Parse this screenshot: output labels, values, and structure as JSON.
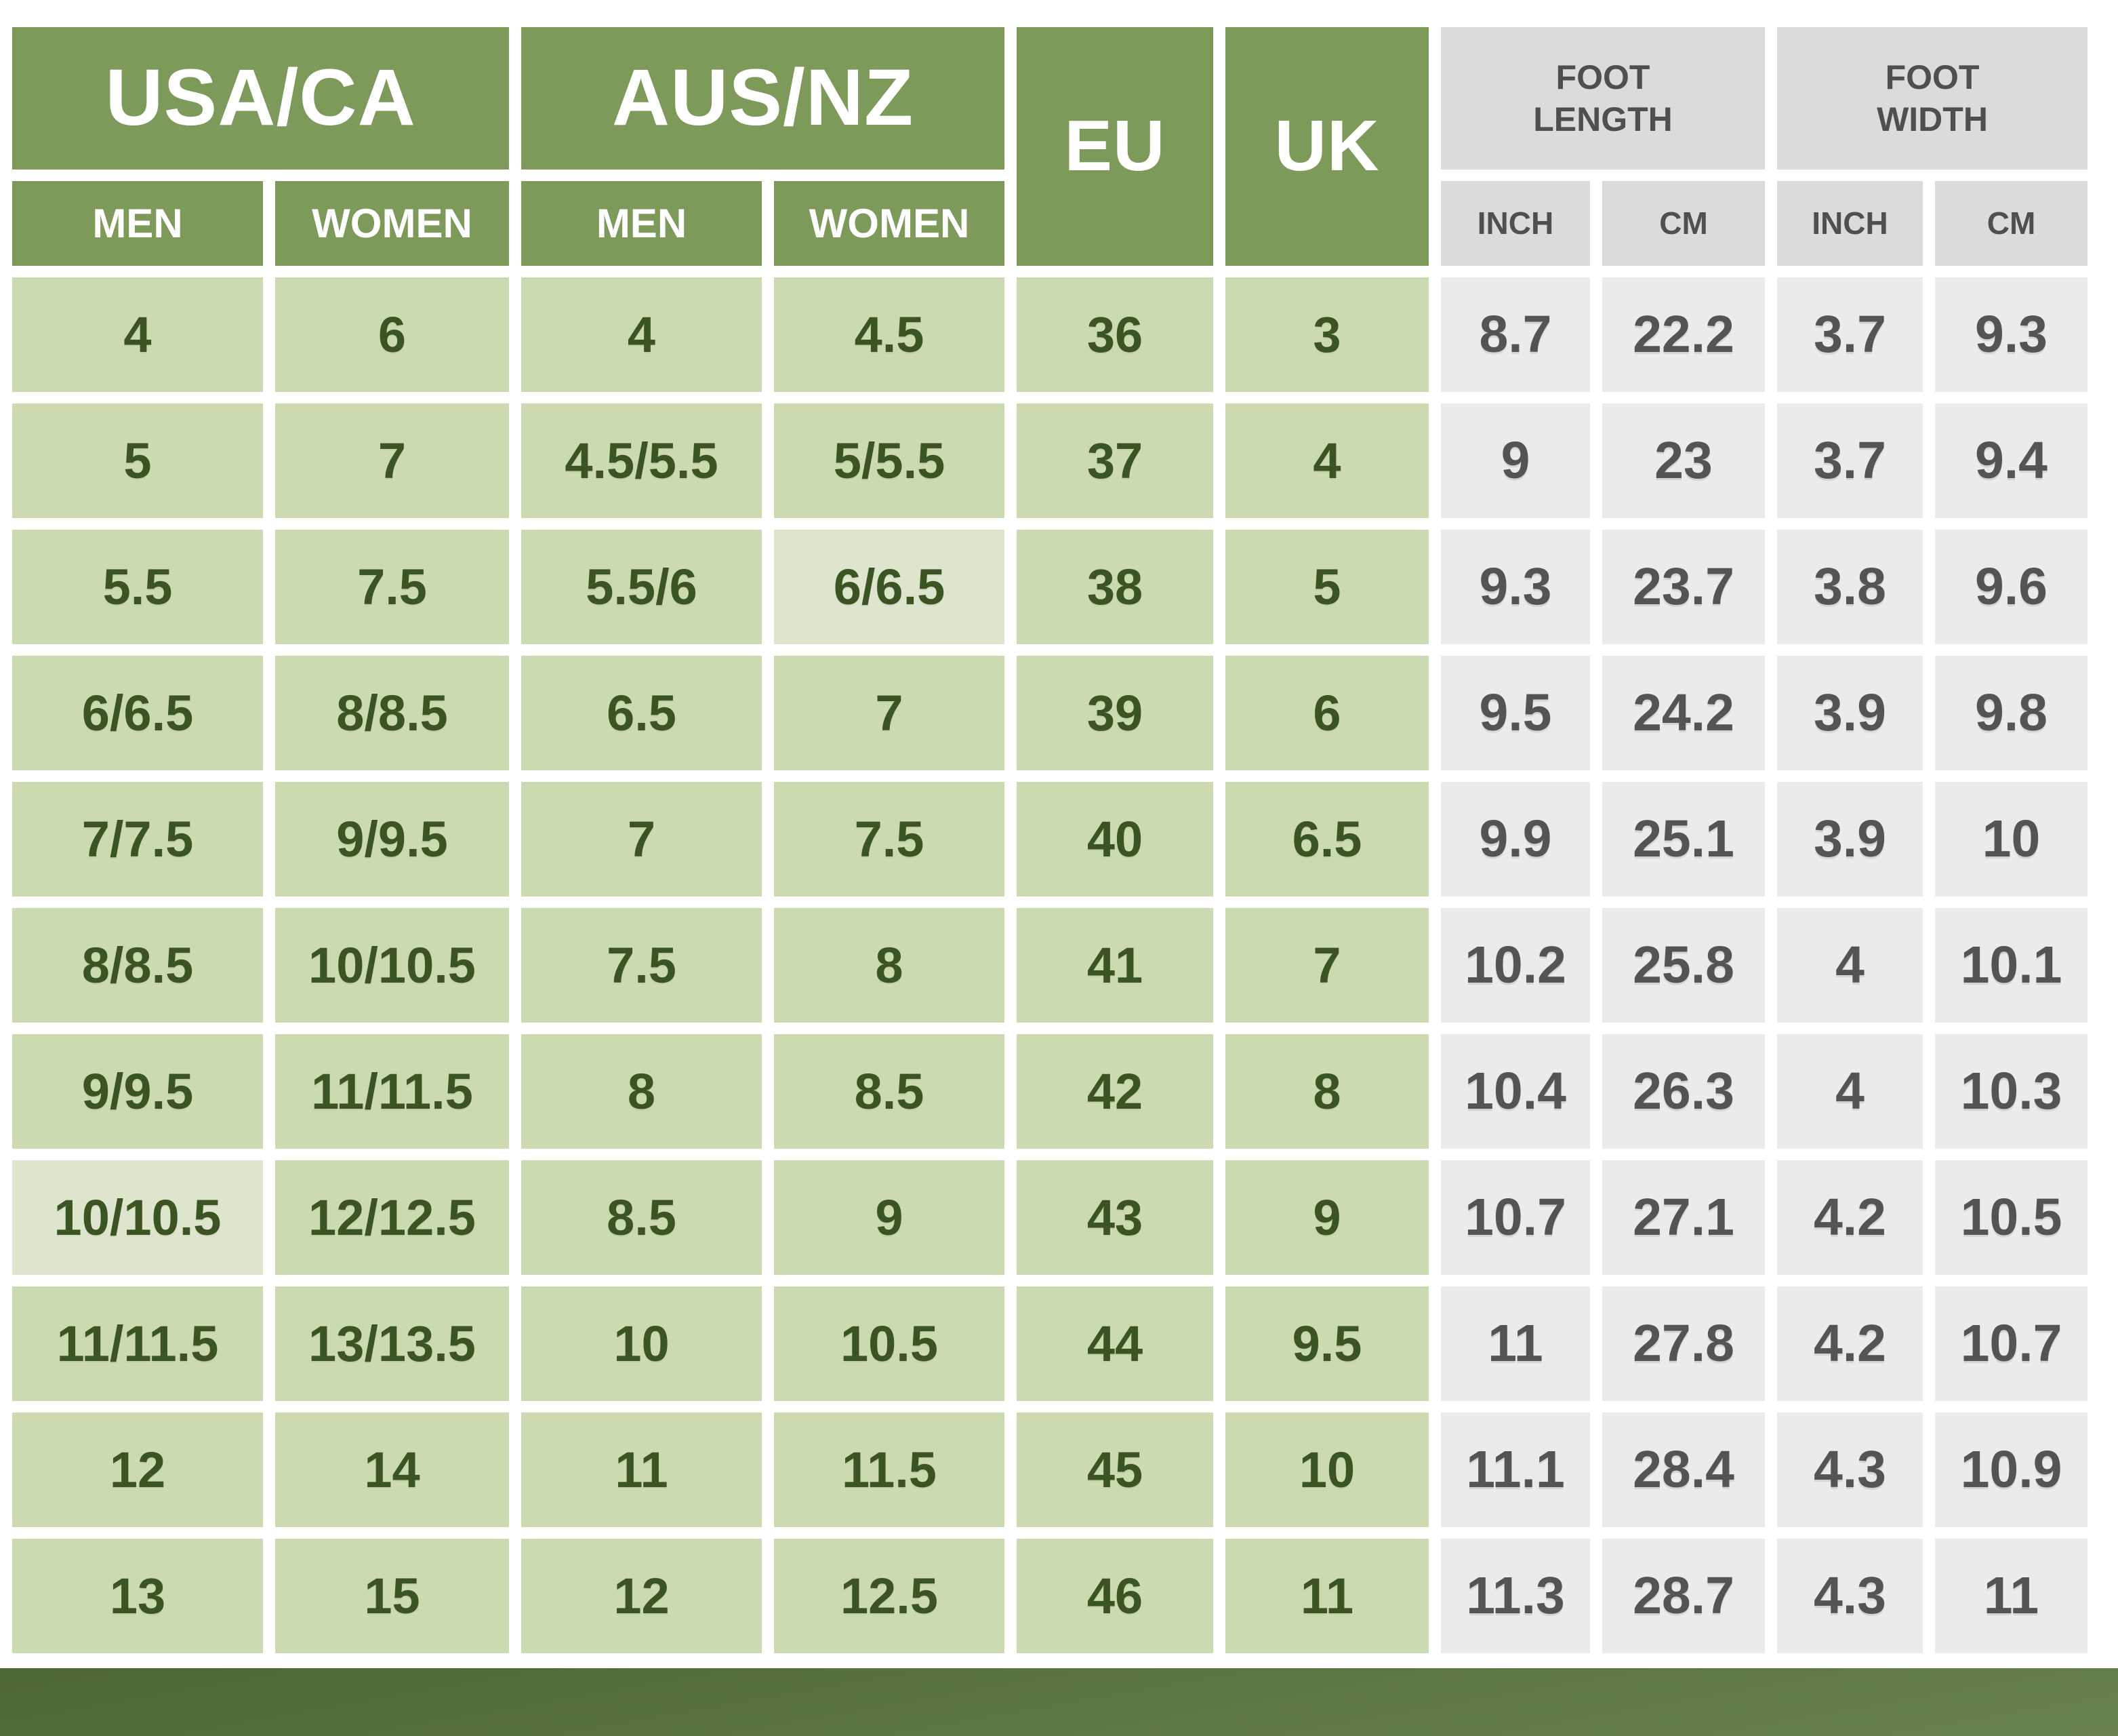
{
  "colors": {
    "header_green": "#7d9a5b",
    "cell_green": "#ccdab1",
    "cell_green_light": "#dde6cc",
    "cell_green_text": "#3c5323",
    "header_gray": "#dbdbdb",
    "cell_gray": "#ebebeb",
    "cell_gray_text": "#545454",
    "footer_green": "#5e7643",
    "background": "#ffffff"
  },
  "chart_data": {
    "type": "table",
    "column_groups": [
      {
        "label": "USA/CA",
        "columns": [
          "MEN",
          "WOMEN"
        ]
      },
      {
        "label": "AUS/NZ",
        "columns": [
          "MEN",
          "WOMEN"
        ]
      },
      {
        "label": "EU"
      },
      {
        "label": "UK"
      },
      {
        "label": "FOOT\nLENGTH",
        "columns": [
          "INCH",
          "CM"
        ]
      },
      {
        "label": "FOOT\nWIDTH",
        "columns": [
          "INCH",
          "CM"
        ]
      }
    ],
    "rows": [
      [
        "4",
        "6",
        "4",
        "4.5",
        "36",
        "3",
        "8.7",
        "22.2",
        "3.7",
        "9.3"
      ],
      [
        "5",
        "7",
        "4.5/5.5",
        "5/5.5",
        "37",
        "4",
        "9",
        "23",
        "3.7",
        "9.4"
      ],
      [
        "5.5",
        "7.5",
        "5.5/6",
        "6/6.5",
        "38",
        "5",
        "9.3",
        "23.7",
        "3.8",
        "9.6"
      ],
      [
        "6/6.5",
        "8/8.5",
        "6.5",
        "7",
        "39",
        "6",
        "9.5",
        "24.2",
        "3.9",
        "9.8"
      ],
      [
        "7/7.5",
        "9/9.5",
        "7",
        "7.5",
        "40",
        "6.5",
        "9.9",
        "25.1",
        "3.9",
        "10"
      ],
      [
        "8/8.5",
        "10/10.5",
        "7.5",
        "8",
        "41",
        "7",
        "10.2",
        "25.8",
        "4",
        "10.1"
      ],
      [
        "9/9.5",
        "11/11.5",
        "8",
        "8.5",
        "42",
        "8",
        "10.4",
        "26.3",
        "4",
        "10.3"
      ],
      [
        "10/10.5",
        "12/12.5",
        "8.5",
        "9",
        "43",
        "9",
        "10.7",
        "27.1",
        "4.2",
        "10.5"
      ],
      [
        "11/11.5",
        "13/13.5",
        "10",
        "10.5",
        "44",
        "9.5",
        "11",
        "27.8",
        "4.2",
        "10.7"
      ],
      [
        "12",
        "14",
        "11",
        "11.5",
        "45",
        "10",
        "11.1",
        "28.4",
        "4.3",
        "10.9"
      ],
      [
        "13",
        "15",
        "12",
        "12.5",
        "46",
        "11",
        "11.3",
        "28.7",
        "4.3",
        "11"
      ]
    ],
    "highlight_cells": [
      [
        2,
        3
      ],
      [
        7,
        0
      ]
    ],
    "layout_hints": {
      "green_columns": 6,
      "gray_columns": 4,
      "legend_position": "none",
      "grid": "white-gaps-between-cells"
    }
  }
}
